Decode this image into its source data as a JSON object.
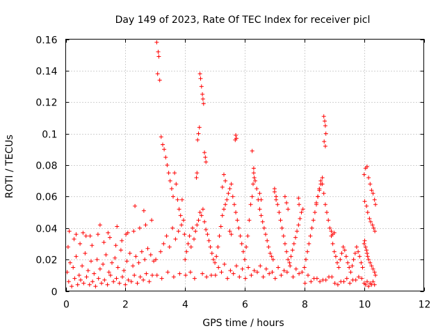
{
  "chart_data": {
    "type": "scatter",
    "title": "Day 149 of 2023, Rate Of TEC Index for receiver picl",
    "xlabel": "GPS time / hours",
    "ylabel": "ROTI / TECUs",
    "xlim": [
      0,
      12
    ],
    "ylim": [
      0,
      0.16
    ],
    "xticks": [
      0,
      2,
      4,
      6,
      8,
      10,
      12
    ],
    "xtick_labels": [
      "0",
      "2",
      "4",
      "6",
      "8",
      "10",
      "12"
    ],
    "yticks": [
      0,
      0.02,
      0.04,
      0.06,
      0.08,
      0.1,
      0.12,
      0.14,
      0.16
    ],
    "ytick_labels": [
      "0",
      "0.02",
      "0.04",
      "0.06",
      "0.08",
      "0.1",
      "0.12",
      "0.14",
      "0.16"
    ],
    "grid": true,
    "marker": "+",
    "color": "#ff0000",
    "series": [
      {
        "name": "ROTI",
        "x": [
          0.05,
          0.15,
          0.25,
          0.35,
          0.45,
          0.55,
          0.65,
          0.75,
          0.85,
          0.95,
          1.05,
          1.15,
          1.25,
          1.35,
          1.45,
          1.55,
          1.65,
          1.75,
          1.85,
          1.95,
          2.05,
          2.15,
          2.25,
          2.35,
          2.45,
          2.55,
          2.65,
          2.75,
          2.85,
          2.95,
          0.1,
          0.3,
          0.5,
          0.7,
          0.9,
          1.1,
          1.3,
          1.5,
          1.7,
          1.9,
          2.1,
          2.3,
          2.5,
          2.7,
          2.9,
          0.08,
          0.28,
          0.48,
          0.68,
          0.88,
          1.08,
          1.28,
          1.48,
          1.68,
          1.88,
          2.08,
          2.28,
          2.48,
          2.68,
          2.88,
          0.2,
          0.4,
          0.6,
          0.8,
          1.0,
          1.2,
          1.4,
          1.6,
          1.8,
          2.0,
          2.2,
          2.4,
          2.6,
          2.8,
          0.12,
          0.35,
          0.58,
          0.82,
          1.15,
          1.42,
          1.72,
          2.02,
          2.32,
          2.62,
          3.05,
          3.1,
          3.12,
          3.08,
          3.15,
          3.2,
          3.25,
          3.3,
          3.35,
          3.4,
          3.45,
          3.5,
          3.55,
          3.6,
          3.65,
          3.7,
          3.75,
          3.8,
          3.85,
          3.9,
          3.95,
          3.02,
          3.18,
          3.28,
          3.38,
          3.48,
          3.58,
          3.68,
          3.78,
          3.88,
          3.98,
          3.06,
          3.22,
          3.42,
          3.62,
          3.82,
          4.0,
          4.05,
          4.1,
          4.15,
          4.2,
          4.25,
          4.3,
          4.35,
          4.4,
          4.45,
          4.5,
          4.55,
          4.6,
          4.65,
          4.7,
          4.75,
          4.8,
          4.85,
          4.9,
          4.95,
          4.5,
          4.52,
          4.55,
          4.58,
          4.6,
          4.62,
          4.48,
          4.45,
          4.42,
          4.65,
          4.68,
          4.7,
          4.4,
          4.38,
          4.02,
          4.18,
          4.32,
          4.58,
          4.72,
          4.88,
          5.0,
          5.05,
          5.1,
          5.15,
          5.2,
          5.25,
          5.3,
          5.35,
          5.4,
          5.45,
          5.5,
          5.55,
          5.6,
          5.65,
          5.7,
          5.75,
          5.8,
          5.85,
          5.9,
          5.95,
          5.02,
          5.22,
          5.42,
          5.62,
          5.82,
          5.12,
          5.32,
          5.52,
          5.72,
          5.92,
          5.7,
          5.72,
          5.68,
          5.3,
          5.35,
          5.25,
          5.5,
          5.55,
          6.0,
          6.05,
          6.1,
          6.15,
          6.2,
          6.25,
          6.3,
          6.35,
          6.4,
          6.45,
          6.5,
          6.55,
          6.6,
          6.65,
          6.7,
          6.75,
          6.8,
          6.85,
          6.9,
          6.95,
          6.02,
          6.22,
          6.42,
          6.62,
          6.82,
          6.12,
          6.32,
          6.52,
          6.72,
          6.92,
          6.25,
          6.3,
          6.32,
          6.28,
          6.5,
          6.55,
          7.0,
          7.05,
          7.1,
          7.15,
          7.2,
          7.25,
          7.3,
          7.35,
          7.4,
          7.45,
          7.5,
          7.55,
          7.6,
          7.65,
          7.7,
          7.75,
          7.8,
          7.85,
          7.9,
          7.95,
          7.02,
          7.22,
          7.42,
          7.62,
          7.82,
          7.12,
          7.32,
          7.52,
          7.72,
          7.92,
          7.0,
          7.05,
          7.35,
          7.4,
          7.45,
          7.8,
          7.82,
          8.0,
          8.05,
          8.1,
          8.15,
          8.2,
          8.25,
          8.3,
          8.35,
          8.4,
          8.45,
          8.5,
          8.55,
          8.6,
          8.65,
          8.7,
          8.75,
          8.8,
          8.85,
          8.9,
          8.95,
          8.02,
          8.22,
          8.42,
          8.62,
          8.82,
          8.12,
          8.32,
          8.52,
          8.72,
          8.92,
          8.65,
          8.68,
          8.7,
          8.72,
          8.66,
          8.7,
          8.6,
          8.55,
          8.5,
          8.45,
          8.4,
          9.0,
          9.05,
          9.1,
          9.15,
          9.2,
          9.25,
          9.3,
          9.35,
          9.4,
          9.45,
          9.5,
          9.55,
          9.6,
          9.65,
          9.7,
          9.75,
          9.8,
          9.85,
          9.9,
          9.95,
          9.02,
          9.22,
          9.42,
          9.62,
          9.82,
          9.12,
          9.32,
          9.52,
          9.72,
          9.92,
          8.9,
          8.95,
          9.0,
          10.0,
          10.05,
          10.1,
          10.15,
          10.2,
          10.25,
          10.3,
          10.35,
          10.38,
          10.02,
          10.08,
          10.12,
          10.18,
          10.22,
          10.28,
          10.32,
          10.36,
          10.0,
          10.02,
          10.05,
          10.08,
          10.1,
          10.12,
          10.15,
          10.2,
          10.25,
          10.3,
          10.35,
          10.38,
          10.0,
          10.05,
          10.1,
          10.15,
          10.2,
          10.25,
          10.3,
          10.35
        ],
        "y": [
          0.012,
          0.018,
          0.015,
          0.022,
          0.01,
          0.016,
          0.024,
          0.013,
          0.019,
          0.011,
          0.02,
          0.014,
          0.017,
          0.023,
          0.012,
          0.018,
          0.021,
          0.015,
          0.026,
          0.013,
          0.019,
          0.024,
          0.016,
          0.022,
          0.018,
          0.025,
          0.02,
          0.027,
          0.023,
          0.019,
          0.006,
          0.008,
          0.007,
          0.009,
          0.006,
          0.008,
          0.007,
          0.01,
          0.008,
          0.009,
          0.007,
          0.01,
          0.009,
          0.011,
          0.01,
          0.028,
          0.033,
          0.03,
          0.035,
          0.029,
          0.036,
          0.031,
          0.034,
          0.029,
          0.032,
          0.037,
          0.038,
          0.04,
          0.042,
          0.045,
          0.003,
          0.004,
          0.005,
          0.004,
          0.003,
          0.005,
          0.004,
          0.006,
          0.005,
          0.004,
          0.006,
          0.005,
          0.007,
          0.006,
          0.038,
          0.036,
          0.037,
          0.035,
          0.042,
          0.037,
          0.041,
          0.036,
          0.054,
          0.051,
          0.158,
          0.152,
          0.149,
          0.138,
          0.134,
          0.098,
          0.093,
          0.09,
          0.085,
          0.08,
          0.075,
          0.07,
          0.065,
          0.06,
          0.075,
          0.068,
          0.058,
          0.052,
          0.048,
          0.058,
          0.045,
          0.02,
          0.025,
          0.03,
          0.035,
          0.028,
          0.04,
          0.033,
          0.038,
          0.042,
          0.036,
          0.01,
          0.008,
          0.012,
          0.009,
          0.011,
          0.02,
          0.025,
          0.03,
          0.035,
          0.028,
          0.04,
          0.033,
          0.038,
          0.042,
          0.045,
          0.05,
          0.048,
          0.052,
          0.044,
          0.039,
          0.036,
          0.032,
          0.028,
          0.024,
          0.02,
          0.138,
          0.135,
          0.13,
          0.125,
          0.122,
          0.119,
          0.104,
          0.1,
          0.096,
          0.088,
          0.085,
          0.082,
          0.075,
          0.072,
          0.01,
          0.012,
          0.008,
          0.011,
          0.009,
          0.01,
          0.018,
          0.022,
          0.028,
          0.035,
          0.041,
          0.048,
          0.052,
          0.055,
          0.058,
          0.062,
          0.065,
          0.068,
          0.06,
          0.055,
          0.05,
          0.045,
          0.04,
          0.035,
          0.03,
          0.025,
          0.01,
          0.012,
          0.008,
          0.011,
          0.009,
          0.015,
          0.017,
          0.013,
          0.016,
          0.014,
          0.099,
          0.097,
          0.096,
          0.074,
          0.07,
          0.066,
          0.038,
          0.036,
          0.02,
          0.028,
          0.035,
          0.045,
          0.055,
          0.06,
          0.075,
          0.07,
          0.065,
          0.058,
          0.052,
          0.048,
          0.044,
          0.04,
          0.036,
          0.032,
          0.028,
          0.024,
          0.022,
          0.02,
          0.008,
          0.01,
          0.012,
          0.009,
          0.011,
          0.015,
          0.013,
          0.016,
          0.014,
          0.012,
          0.089,
          0.078,
          0.072,
          0.068,
          0.062,
          0.058,
          0.065,
          0.06,
          0.055,
          0.05,
          0.045,
          0.04,
          0.035,
          0.03,
          0.025,
          0.02,
          0.018,
          0.022,
          0.026,
          0.03,
          0.034,
          0.038,
          0.042,
          0.046,
          0.05,
          0.052,
          0.008,
          0.01,
          0.012,
          0.009,
          0.011,
          0.015,
          0.013,
          0.016,
          0.014,
          0.012,
          0.063,
          0.058,
          0.06,
          0.056,
          0.052,
          0.059,
          0.055,
          0.015,
          0.02,
          0.025,
          0.03,
          0.035,
          0.04,
          0.045,
          0.05,
          0.055,
          0.06,
          0.065,
          0.07,
          0.068,
          0.062,
          0.055,
          0.05,
          0.045,
          0.04,
          0.035,
          0.03,
          0.005,
          0.006,
          0.008,
          0.007,
          0.009,
          0.01,
          0.008,
          0.006,
          0.007,
          0.009,
          0.111,
          0.108,
          0.105,
          0.1,
          0.095,
          0.092,
          0.072,
          0.068,
          0.064,
          0.06,
          0.056,
          0.025,
          0.022,
          0.018,
          0.015,
          0.02,
          0.024,
          0.028,
          0.026,
          0.022,
          0.018,
          0.015,
          0.012,
          0.016,
          0.02,
          0.024,
          0.028,
          0.025,
          0.022,
          0.018,
          0.015,
          0.005,
          0.006,
          0.008,
          0.007,
          0.009,
          0.004,
          0.006,
          0.005,
          0.007,
          0.008,
          0.038,
          0.036,
          0.037,
          0.074,
          0.078,
          0.079,
          0.072,
          0.068,
          0.064,
          0.062,
          0.058,
          0.055,
          0.057,
          0.054,
          0.05,
          0.046,
          0.044,
          0.042,
          0.04,
          0.038,
          0.03,
          0.032,
          0.028,
          0.026,
          0.024,
          0.022,
          0.02,
          0.018,
          0.016,
          0.014,
          0.012,
          0.01,
          0.005,
          0.004,
          0.006,
          0.003,
          0.005,
          0.004,
          0.006,
          0.004
        ]
      }
    ]
  }
}
